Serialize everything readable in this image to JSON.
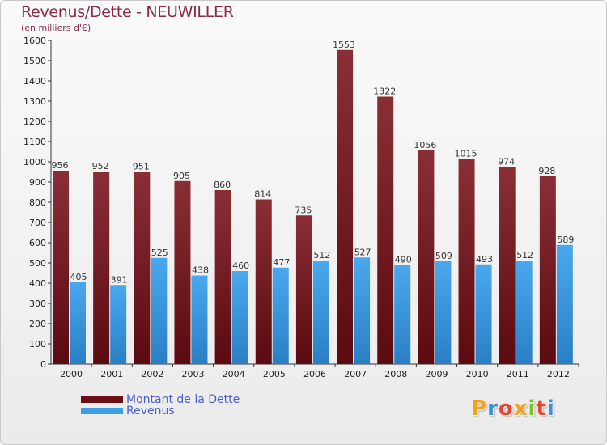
{
  "title": "Revenus/Dette - NEUWILLER",
  "subtitle": "(en milliers d'€)",
  "logo": {
    "letters": [
      "P",
      "r",
      "o",
      "x",
      "i",
      "t",
      "i"
    ],
    "colors": [
      "#f1a31b",
      "#3b8fd6",
      "#e8432c",
      "#f1a31b",
      "#7fbf2a",
      "#e8432c",
      "#3b8fd6"
    ]
  },
  "legend": [
    {
      "label": "Montant de la Dette",
      "color": "#6b0f14"
    },
    {
      "label": "Revenus",
      "color": "#3e9ee6"
    }
  ],
  "chart_data": {
    "type": "bar",
    "title": "Revenus/Dette - NEUWILLER",
    "ylabel": "(en milliers d'€)",
    "xlabel": "",
    "ylim": [
      0,
      1600
    ],
    "ytick_step": 100,
    "grid": false,
    "categories": [
      "2000",
      "2001",
      "2002",
      "2003",
      "2004",
      "2005",
      "2006",
      "2007",
      "2008",
      "2009",
      "2010",
      "2011",
      "2012"
    ],
    "series": [
      {
        "name": "Montant de la Dette",
        "color": "#7f2a33",
        "values": [
          956,
          952,
          951,
          905,
          860,
          814,
          735,
          1553,
          1322,
          1056,
          1015,
          974,
          928
        ]
      },
      {
        "name": "Revenus",
        "color": "#3e9ee6",
        "values": [
          405,
          391,
          525,
          438,
          460,
          477,
          512,
          527,
          490,
          509,
          493,
          512,
          589
        ]
      }
    ]
  }
}
